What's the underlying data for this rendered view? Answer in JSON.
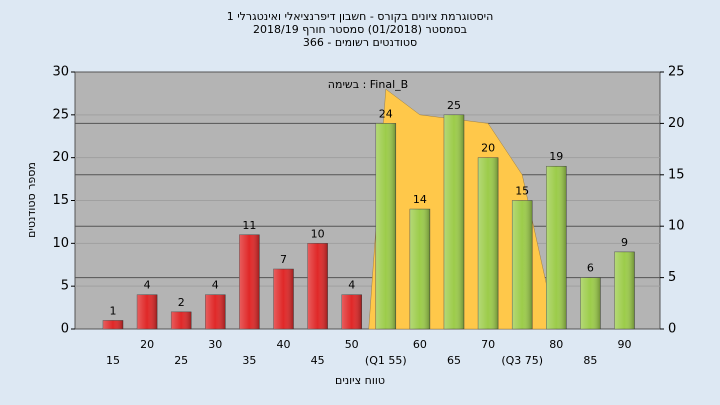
{
  "chart_data": {
    "type": "bar",
    "title": "היסטוגרמת ציונים בקורס - חשבון דיפרנציאלי ואינטגרלי 1",
    "subtitle": "בסמסטר  (01/2018)  סמסטר חורף 2018/19",
    "subtitle2": "סטודנטים רשומים - 366",
    "annotation": "בשימה : Final_B",
    "x_label": "טווח ציונים",
    "y_label": "מספר סטודנטים",
    "categories": [
      "15",
      "20",
      "25",
      "30",
      "35",
      "40",
      "45",
      "50",
      "(Q1 55)",
      "60",
      "65",
      "70",
      "(Q3 75)",
      "80",
      "85",
      "90"
    ],
    "values": [
      1,
      4,
      2,
      4,
      11,
      7,
      10,
      4,
      24,
      14,
      25,
      20,
      15,
      19,
      6,
      9
    ],
    "colors": [
      "#e02828",
      "#e02828",
      "#e02828",
      "#e02828",
      "#e02828",
      "#e02828",
      "#e02828",
      "#e02828",
      "#9ccc4a",
      "#9ccc4a",
      "#9ccc4a",
      "#9ccc4a",
      "#9ccc4a",
      "#9ccc4a",
      "#9ccc4a",
      "#9ccc4a"
    ],
    "area": {
      "color": "#ffc84a",
      "values": [
        null,
        null,
        null,
        null,
        null,
        null,
        null,
        0,
        28,
        25,
        24.5,
        24,
        18,
        0,
        null,
        null
      ]
    },
    "ylim": [
      0,
      30
    ],
    "yticks": [
      0,
      5,
      10,
      15,
      20,
      25,
      30
    ],
    "y2lim": [
      0,
      25
    ],
    "y2ticks": [
      0,
      5,
      10,
      15,
      20,
      25
    ],
    "grid": true
  }
}
